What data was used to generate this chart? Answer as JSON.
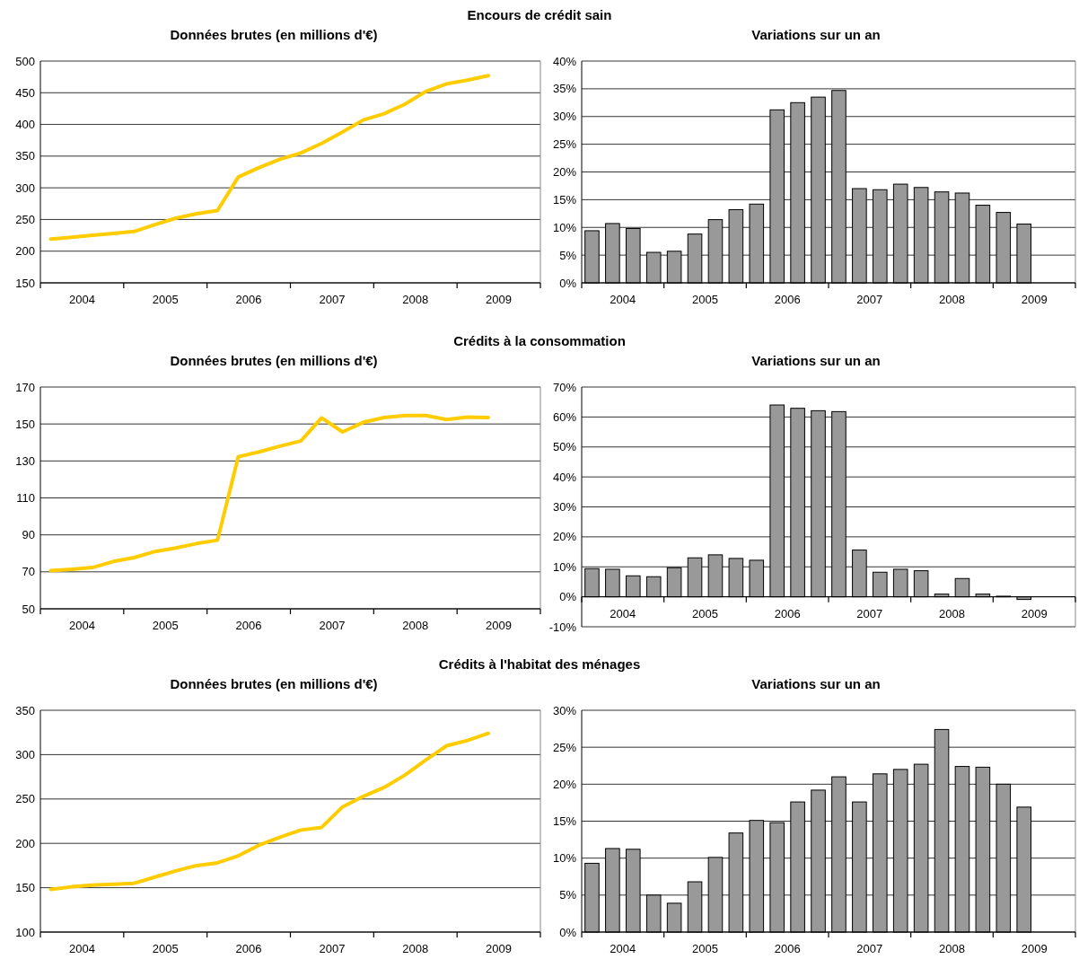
{
  "chart_data": [
    {
      "type": "line",
      "title": "Encours de crédit sain",
      "subtitle": "Données brutes (en millions d'€)",
      "x": [
        2003.625,
        2003.875,
        2004.125,
        2004.375,
        2004.625,
        2004.875,
        2005.125,
        2005.375,
        2005.625,
        2005.875,
        2006.125,
        2006.375,
        2006.625,
        2006.875,
        2007.125,
        2007.375,
        2007.625,
        2007.875,
        2008.125,
        2008.375,
        2008.625,
        2008.875
      ],
      "xlim": [
        2003.5,
        2009.5
      ],
      "xticks": [
        {
          "value": 2003.5,
          "label": null
        },
        2004,
        {
          "value": 2004.5,
          "label": null
        },
        2005,
        {
          "value": 2005.5,
          "label": null
        },
        2006,
        {
          "value": 2006.5,
          "label": null
        },
        2007,
        {
          "value": 2007.5,
          "label": null
        },
        2008,
        {
          "value": 2008.5,
          "label": null
        },
        2009,
        {
          "value": 2009.5,
          "label": null
        }
      ],
      "ylim": [
        150,
        500
      ],
      "yticks": [
        150,
        200,
        250,
        300,
        350,
        400,
        450,
        500
      ],
      "grid": "y",
      "series": [
        {
          "color": "#ffcc00",
          "values": [
            219,
            222,
            225,
            228,
            231,
            242,
            252,
            259,
            264,
            317,
            332,
            345,
            355,
            370,
            388,
            407,
            417,
            432,
            452,
            464,
            470,
            477
          ]
        }
      ]
    },
    {
      "type": "bar",
      "subtitle": "Variations sur un an",
      "x": [
        2003.625,
        2003.875,
        2004.125,
        2004.375,
        2004.625,
        2004.875,
        2005.125,
        2005.375,
        2005.625,
        2005.875,
        2006.125,
        2006.375,
        2006.625,
        2006.875,
        2007.125,
        2007.375,
        2007.625,
        2007.875,
        2008.125,
        2008.375,
        2008.625,
        2008.875
      ],
      "xlim": [
        2003.5,
        2009.5
      ],
      "xticks": [
        {
          "value": 2003.5,
          "label": null
        },
        2004,
        {
          "value": 2004.5,
          "label": null
        },
        2005,
        {
          "value": 2005.5,
          "label": null
        },
        2006,
        {
          "value": 2006.5,
          "label": null
        },
        2007,
        {
          "value": 2007.5,
          "label": null
        },
        2008,
        {
          "value": 2008.5,
          "label": null
        },
        2009,
        {
          "value": 2009.5,
          "label": null
        }
      ],
      "ylim": [
        0,
        40
      ],
      "yticks": [
        {
          "value": 0,
          "label": "0%"
        },
        {
          "value": 5,
          "label": "5%"
        },
        {
          "value": 10,
          "label": "10%"
        },
        {
          "value": 15,
          "label": "15%"
        },
        {
          "value": 20,
          "label": "20%"
        },
        {
          "value": 25,
          "label": "25%"
        },
        {
          "value": 30,
          "label": "30%"
        },
        {
          "value": 35,
          "label": "35%"
        },
        {
          "value": 40,
          "label": "40%"
        }
      ],
      "grid": "y",
      "series": [
        {
          "color": "#999999",
          "values": [
            9.4,
            10.7,
            9.8,
            5.5,
            5.7,
            8.8,
            11.4,
            13.2,
            14.2,
            31.2,
            32.5,
            33.5,
            34.7,
            17.0,
            16.8,
            17.8,
            17.2,
            16.4,
            16.2,
            14.0,
            12.7,
            10.6
          ]
        }
      ]
    },
    {
      "type": "line",
      "title": "Crédits à la consommation",
      "subtitle": "Données brutes (en millions d'€)",
      "x": [
        2003.625,
        2003.875,
        2004.125,
        2004.375,
        2004.625,
        2004.875,
        2005.125,
        2005.375,
        2005.625,
        2005.875,
        2006.125,
        2006.375,
        2006.625,
        2006.875,
        2007.125,
        2007.375,
        2007.625,
        2007.875,
        2008.125,
        2008.375,
        2008.625,
        2008.875
      ],
      "xlim": [
        2003.5,
        2009.5
      ],
      "xticks": [
        {
          "value": 2003.5,
          "label": null
        },
        2004,
        {
          "value": 2004.5,
          "label": null
        },
        2005,
        {
          "value": 2005.5,
          "label": null
        },
        2006,
        {
          "value": 2006.5,
          "label": null
        },
        2007,
        {
          "value": 2007.5,
          "label": null
        },
        2008,
        {
          "value": 2008.5,
          "label": null
        },
        2009,
        {
          "value": 2009.5,
          "label": null
        }
      ],
      "ylim": [
        50,
        170
      ],
      "yticks": [
        50,
        70,
        90,
        110,
        130,
        150,
        170
      ],
      "grid": "y",
      "series": [
        {
          "color": "#ffcc00",
          "values": [
            70.6,
            71.4,
            72.3,
            75.6,
            77.7,
            81.0,
            82.9,
            85.3,
            87.1,
            132.3,
            134.9,
            138.0,
            140.8,
            153.3,
            145.7,
            150.9,
            153.5,
            154.6,
            154.6,
            152.4,
            153.7,
            153.5
          ]
        }
      ]
    },
    {
      "type": "bar",
      "subtitle": "Variations sur un an",
      "x": [
        2003.625,
        2003.875,
        2004.125,
        2004.375,
        2004.625,
        2004.875,
        2005.125,
        2005.375,
        2005.625,
        2005.875,
        2006.125,
        2006.375,
        2006.625,
        2006.875,
        2007.125,
        2007.375,
        2007.625,
        2007.875,
        2008.125,
        2008.375,
        2008.625,
        2008.875
      ],
      "xlim": [
        2003.5,
        2009.5
      ],
      "xticks": [
        {
          "value": 2003.5,
          "label": null
        },
        2004,
        {
          "value": 2004.5,
          "label": null
        },
        2005,
        {
          "value": 2005.5,
          "label": null
        },
        2006,
        {
          "value": 2006.5,
          "label": null
        },
        2007,
        {
          "value": 2007.5,
          "label": null
        },
        2008,
        {
          "value": 2008.5,
          "label": null
        },
        2009,
        {
          "value": 2009.5,
          "label": null
        }
      ],
      "ylim": [
        -10,
        70
      ],
      "yticks": [
        {
          "value": -10,
          "label": "-10%"
        },
        {
          "value": 0,
          "label": "0%"
        },
        {
          "value": 10,
          "label": "10%"
        },
        {
          "value": 20,
          "label": "20%"
        },
        {
          "value": 30,
          "label": "30%"
        },
        {
          "value": 40,
          "label": "40%"
        },
        {
          "value": 50,
          "label": "50%"
        },
        {
          "value": 60,
          "label": "60%"
        },
        {
          "value": 70,
          "label": "70%"
        }
      ],
      "grid": "y",
      "series": [
        {
          "color": "#999999",
          "values": [
            9.4,
            9.2,
            7.0,
            6.7,
            9.7,
            13.0,
            14.0,
            12.8,
            12.2,
            64.0,
            62.9,
            62.1,
            61.8,
            15.6,
            8.2,
            9.2,
            8.7,
            0.9,
            6.1,
            0.9,
            0.2,
            -0.9
          ]
        }
      ]
    },
    {
      "type": "line",
      "title": "Crédits à l'habitat des ménages",
      "subtitle": "Données brutes (en millions d'€)",
      "x": [
        2003.625,
        2003.875,
        2004.125,
        2004.375,
        2004.625,
        2004.875,
        2005.125,
        2005.375,
        2005.625,
        2005.875,
        2006.125,
        2006.375,
        2006.625,
        2006.875,
        2007.125,
        2007.375,
        2007.625,
        2007.875,
        2008.125,
        2008.375,
        2008.625,
        2008.875
      ],
      "xlim": [
        2003.5,
        2009.5
      ],
      "xticks": [
        {
          "value": 2003.5,
          "label": null
        },
        2004,
        {
          "value": 2004.5,
          "label": null
        },
        2005,
        {
          "value": 2005.5,
          "label": null
        },
        2006,
        {
          "value": 2006.5,
          "label": null
        },
        2007,
        {
          "value": 2007.5,
          "label": null
        },
        2008,
        {
          "value": 2008.5,
          "label": null
        },
        2009,
        {
          "value": 2009.5,
          "label": null
        }
      ],
      "ylim": [
        100,
        350
      ],
      "yticks": [
        100,
        150,
        200,
        250,
        300,
        350
      ],
      "grid": "y",
      "series": [
        {
          "color": "#ffcc00",
          "values": [
            148,
            151,
            153,
            154,
            155,
            162,
            169,
            175,
            178,
            186,
            198,
            207,
            215,
            218,
            241,
            253,
            263,
            277,
            294,
            310,
            316,
            324
          ]
        }
      ]
    },
    {
      "type": "bar",
      "subtitle": "Variations sur un an",
      "x": [
        2003.625,
        2003.875,
        2004.125,
        2004.375,
        2004.625,
        2004.875,
        2005.125,
        2005.375,
        2005.625,
        2005.875,
        2006.125,
        2006.375,
        2006.625,
        2006.875,
        2007.125,
        2007.375,
        2007.625,
        2007.875,
        2008.125,
        2008.375,
        2008.625,
        2008.875
      ],
      "xlim": [
        2003.5,
        2009.5
      ],
      "xticks": [
        {
          "value": 2003.5,
          "label": null
        },
        2004,
        {
          "value": 2004.5,
          "label": null
        },
        2005,
        {
          "value": 2005.5,
          "label": null
        },
        2006,
        {
          "value": 2006.5,
          "label": null
        },
        2007,
        {
          "value": 2007.5,
          "label": null
        },
        2008,
        {
          "value": 2008.5,
          "label": null
        },
        2009,
        {
          "value": 2009.5,
          "label": null
        }
      ],
      "ylim": [
        0,
        30
      ],
      "yticks": [
        {
          "value": 0,
          "label": "0%"
        },
        {
          "value": 5,
          "label": "5%"
        },
        {
          "value": 10,
          "label": "10%"
        },
        {
          "value": 15,
          "label": "15%"
        },
        {
          "value": 20,
          "label": "20%"
        },
        {
          "value": 25,
          "label": "25%"
        },
        {
          "value": 30,
          "label": "30%"
        }
      ],
      "grid": "y",
      "series": [
        {
          "color": "#999999",
          "values": [
            9.3,
            11.3,
            11.2,
            5.0,
            3.9,
            6.8,
            10.1,
            13.4,
            15.1,
            14.8,
            17.6,
            19.2,
            21.0,
            17.6,
            21.4,
            22.0,
            22.7,
            27.4,
            22.4,
            22.3,
            20.0,
            16.9
          ]
        }
      ]
    }
  ]
}
